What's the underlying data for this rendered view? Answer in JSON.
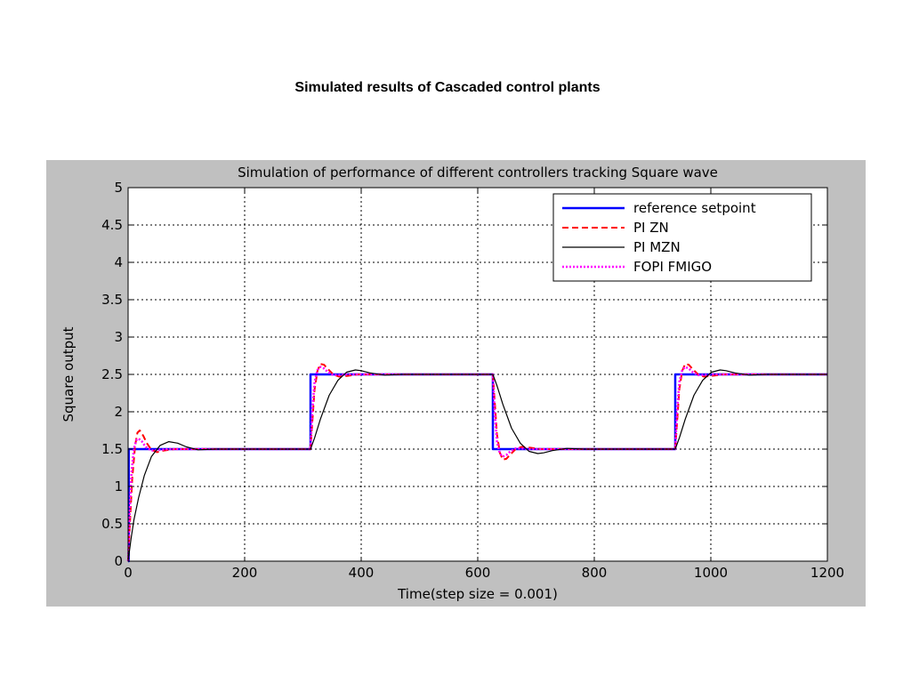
{
  "page": {
    "title": "Simulated results of Cascaded control plants"
  },
  "chart_data": {
    "type": "line",
    "title": "Simulation of performance of different controllers tracking Square wave",
    "xlabel": "Time(step size = 0.001)",
    "ylabel": "Square output",
    "xlim": [
      0,
      1200
    ],
    "ylim": [
      0,
      5
    ],
    "xticks": [
      0,
      200,
      400,
      600,
      800,
      1000,
      1200
    ],
    "yticks": [
      0,
      0.5,
      1,
      1.5,
      2,
      2.5,
      3,
      3.5,
      4,
      4.5,
      5
    ],
    "xtick_labels": [
      "0",
      "200",
      "400",
      "600",
      "800",
      "1000",
      "1200"
    ],
    "ytick_labels": [
      "0",
      "0.5",
      "1",
      "1.5",
      "2",
      "2.5",
      "3",
      "3.5",
      "4",
      "4.5",
      "5"
    ],
    "grid": true,
    "legend_position": "top-right",
    "series": [
      {
        "name": "reference setpoint",
        "color": "#0000ff",
        "style": "solid",
        "x": [
          0,
          1,
          1,
          313,
          313,
          626,
          626,
          939,
          939,
          1200
        ],
        "y": [
          0,
          0,
          1.5,
          1.5,
          2.5,
          2.5,
          1.5,
          1.5,
          2.5,
          2.5
        ]
      },
      {
        "name": "PI ZN",
        "color": "#ff0000",
        "style": "dashed",
        "x": [
          0,
          3,
          7,
          12,
          16,
          20,
          26,
          32,
          40,
          50,
          60,
          80,
          313,
          316,
          320,
          325,
          330,
          336,
          343,
          352,
          362,
          375,
          395,
          626,
          629,
          633,
          638,
          643,
          649,
          656,
          665,
          675,
          688,
          708,
          939,
          942,
          946,
          951,
          956,
          962,
          969,
          978,
          988,
          1001,
          1021,
          1200
        ],
        "y": [
          0,
          0.5,
          1.1,
          1.55,
          1.72,
          1.75,
          1.68,
          1.58,
          1.49,
          1.46,
          1.48,
          1.5,
          1.5,
          1.85,
          2.3,
          2.55,
          2.64,
          2.63,
          2.57,
          2.5,
          2.47,
          2.48,
          2.5,
          2.5,
          2.15,
          1.7,
          1.45,
          1.36,
          1.37,
          1.43,
          1.5,
          1.53,
          1.52,
          1.5,
          1.5,
          1.85,
          2.3,
          2.55,
          2.64,
          2.63,
          2.57,
          2.5,
          2.47,
          2.48,
          2.5,
          2.5
        ]
      },
      {
        "name": "PI MZN",
        "color": "#000000",
        "style": "solid",
        "x": [
          0,
          5,
          10,
          18,
          28,
          40,
          55,
          70,
          85,
          100,
          120,
          150,
          313,
          320,
          330,
          345,
          360,
          375,
          390,
          400,
          415,
          440,
          470,
          626,
          633,
          643,
          658,
          673,
          688,
          703,
          713,
          728,
          753,
          783,
          939,
          946,
          956,
          971,
          986,
          1001,
          1016,
          1026,
          1041,
          1066,
          1096,
          1200
        ],
        "y": [
          0,
          0.3,
          0.55,
          0.85,
          1.15,
          1.4,
          1.55,
          1.6,
          1.58,
          1.53,
          1.49,
          1.5,
          1.5,
          1.65,
          1.9,
          2.22,
          2.42,
          2.53,
          2.56,
          2.55,
          2.52,
          2.49,
          2.5,
          2.5,
          2.35,
          2.1,
          1.78,
          1.58,
          1.47,
          1.44,
          1.45,
          1.48,
          1.51,
          1.5,
          1.5,
          1.65,
          1.9,
          2.22,
          2.42,
          2.53,
          2.56,
          2.55,
          2.52,
          2.49,
          2.5,
          2.5
        ]
      },
      {
        "name": "FOPI FMIGO",
        "color": "#ff00ff",
        "style": "dotted",
        "x": [
          0,
          3,
          6,
          10,
          14,
          18,
          24,
          30,
          40,
          55,
          70,
          313,
          316,
          320,
          325,
          330,
          336,
          343,
          352,
          362,
          375,
          626,
          629,
          633,
          638,
          643,
          649,
          656,
          665,
          675,
          688,
          939,
          942,
          946,
          951,
          956,
          962,
          969,
          978,
          988,
          1001,
          1200
        ],
        "y": [
          0,
          0.7,
          1.2,
          1.5,
          1.62,
          1.64,
          1.6,
          1.53,
          1.48,
          1.49,
          1.5,
          1.5,
          2.0,
          2.4,
          2.56,
          2.6,
          2.58,
          2.53,
          2.49,
          2.49,
          2.5,
          2.5,
          2.0,
          1.6,
          1.44,
          1.4,
          1.42,
          1.47,
          1.51,
          1.51,
          1.5,
          1.5,
          2.0,
          2.4,
          2.56,
          2.6,
          2.58,
          2.53,
          2.49,
          2.49,
          2.5,
          2.5
        ]
      }
    ]
  }
}
